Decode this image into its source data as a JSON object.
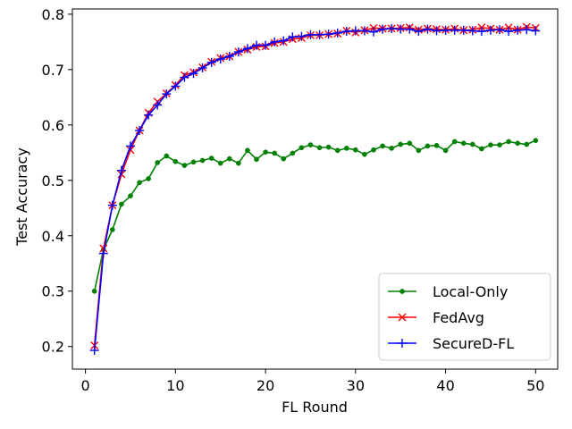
{
  "chart_data": {
    "type": "line",
    "xlabel": "FL Round",
    "ylabel": "Test Accuracy",
    "xlim": [
      -1.45,
      52.45
    ],
    "ylim": [
      0.1592,
      0.8095
    ],
    "xticks": [
      0,
      10,
      20,
      30,
      40,
      50
    ],
    "yticks": [
      0.2,
      0.3,
      0.4,
      0.5,
      0.6,
      0.7,
      0.8
    ],
    "xtick_labels": [
      "0",
      "10",
      "20",
      "30",
      "40",
      "50"
    ],
    "ytick_labels": [
      "0.2",
      "0.3",
      "0.4",
      "0.5",
      "0.6",
      "0.7",
      "0.8"
    ],
    "grid": false,
    "legend_position": "lower-right",
    "x": [
      1,
      2,
      3,
      4,
      5,
      6,
      7,
      8,
      9,
      10,
      11,
      12,
      13,
      14,
      15,
      16,
      17,
      18,
      19,
      20,
      21,
      22,
      23,
      24,
      25,
      26,
      27,
      28,
      29,
      30,
      31,
      32,
      33,
      34,
      35,
      36,
      37,
      38,
      39,
      40,
      41,
      42,
      43,
      44,
      45,
      46,
      47,
      48,
      49,
      50
    ],
    "series": [
      {
        "name": "Local-Only",
        "color": "#008000",
        "marker": "dot",
        "values": [
          0.3,
          0.375,
          0.411,
          0.457,
          0.472,
          0.496,
          0.503,
          0.532,
          0.544,
          0.534,
          0.527,
          0.533,
          0.536,
          0.54,
          0.531,
          0.539,
          0.531,
          0.554,
          0.538,
          0.551,
          0.549,
          0.539,
          0.549,
          0.559,
          0.564,
          0.559,
          0.56,
          0.554,
          0.558,
          0.555,
          0.547,
          0.555,
          0.562,
          0.558,
          0.565,
          0.567,
          0.554,
          0.562,
          0.563,
          0.554,
          0.57,
          0.567,
          0.565,
          0.557,
          0.564,
          0.564,
          0.57,
          0.567,
          0.565,
          0.572
        ]
      },
      {
        "name": "FedAvg",
        "color": "#ff0000",
        "marker": "x",
        "values": [
          0.202,
          0.377,
          0.455,
          0.511,
          0.555,
          0.59,
          0.622,
          0.642,
          0.657,
          0.672,
          0.69,
          0.695,
          0.704,
          0.714,
          0.721,
          0.724,
          0.732,
          0.736,
          0.741,
          0.742,
          0.748,
          0.75,
          0.755,
          0.757,
          0.762,
          0.762,
          0.764,
          0.765,
          0.77,
          0.767,
          0.771,
          0.775,
          0.774,
          0.774,
          0.775,
          0.776,
          0.772,
          0.774,
          0.773,
          0.772,
          0.774,
          0.771,
          0.772,
          0.776,
          0.774,
          0.772,
          0.776,
          0.772,
          0.777,
          0.775
        ]
      },
      {
        "name": "SecureD-FL",
        "color": "#0000ff",
        "marker": "plus",
        "values": [
          0.193,
          0.368,
          0.455,
          0.518,
          0.562,
          0.59,
          0.618,
          0.636,
          0.656,
          0.67,
          0.686,
          0.693,
          0.703,
          0.713,
          0.719,
          0.724,
          0.732,
          0.738,
          0.744,
          0.744,
          0.75,
          0.752,
          0.759,
          0.76,
          0.763,
          0.763,
          0.764,
          0.766,
          0.769,
          0.77,
          0.77,
          0.768,
          0.773,
          0.774,
          0.773,
          0.773,
          0.769,
          0.773,
          0.77,
          0.771,
          0.771,
          0.771,
          0.77,
          0.769,
          0.771,
          0.772,
          0.769,
          0.771,
          0.772,
          0.77
        ]
      }
    ]
  }
}
